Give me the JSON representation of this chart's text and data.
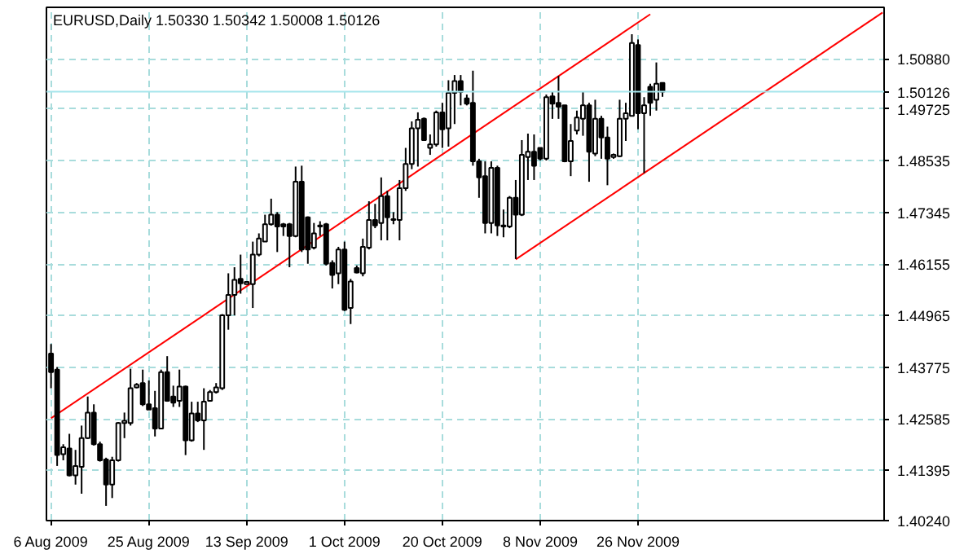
{
  "chart_data": {
    "type": "candlestick",
    "title": "EURUSD,Daily  1.50330 1.50342 1.50008 1.50126",
    "categories": [
      "6 Aug 2009",
      null,
      null,
      null,
      null,
      null,
      null,
      null,
      null,
      null,
      null,
      null,
      null,
      null,
      null,
      null,
      "25 Aug 2009",
      null,
      null,
      null,
      null,
      null,
      null,
      null,
      null,
      null,
      null,
      null,
      null,
      null,
      null,
      null,
      "13 Sep 2009",
      null,
      null,
      null,
      null,
      null,
      null,
      null,
      null,
      null,
      null,
      null,
      null,
      null,
      null,
      null,
      "1 Oct 2009",
      null,
      null,
      null,
      null,
      null,
      null,
      null,
      null,
      null,
      null,
      null,
      null,
      null,
      null,
      null,
      "20 Oct 2009",
      null,
      null,
      null,
      null,
      null,
      null,
      null,
      null,
      null,
      null,
      null,
      null,
      null,
      null,
      null,
      "8 Nov 2009",
      null,
      null,
      null,
      null,
      null,
      null,
      null,
      null,
      null,
      null,
      null,
      null,
      null,
      null,
      null,
      "26 Nov 2009",
      null,
      null,
      null,
      null,
      null,
      null,
      null,
      null,
      null,
      null,
      null,
      null,
      null,
      null,
      null,
      null,
      null,
      null,
      null,
      null,
      null,
      null,
      null,
      null,
      null,
      null,
      null,
      null,
      null,
      null,
      null,
      null,
      null,
      null,
      null,
      null,
      null,
      null,
      null,
      null
    ],
    "ohlc": [
      [
        1.4409,
        1.4431,
        1.4329,
        1.4366
      ],
      [
        1.4372,
        1.4378,
        1.415,
        1.4175
      ],
      [
        1.4177,
        1.42,
        1.4163,
        1.4193
      ],
      [
        1.419,
        1.4224,
        1.4126,
        1.4128
      ],
      [
        1.4128,
        1.4187,
        1.4107,
        1.415
      ],
      [
        1.4148,
        1.4243,
        1.4086,
        1.4214
      ],
      [
        1.4214,
        1.431,
        1.4212,
        1.4273
      ],
      [
        1.4273,
        1.4292,
        1.4197,
        1.42
      ],
      [
        1.42,
        1.4206,
        1.416,
        1.4163
      ],
      [
        1.4165,
        1.4169,
        1.4058,
        1.4107
      ],
      [
        1.4107,
        1.4171,
        1.4076,
        1.4163
      ],
      [
        1.4163,
        1.4251,
        1.416,
        1.4249
      ],
      [
        1.4249,
        1.4273,
        1.4214,
        1.4254
      ],
      [
        1.4249,
        1.4374,
        1.4243,
        1.4329
      ],
      [
        1.4331,
        1.4341,
        1.4329,
        1.4337
      ],
      [
        1.4341,
        1.4372,
        1.4288,
        1.4292
      ],
      [
        1.4292,
        1.4347,
        1.428,
        1.428
      ],
      [
        1.4283,
        1.4323,
        1.4218,
        1.4236
      ],
      [
        1.4236,
        1.4372,
        1.4236,
        1.4366
      ],
      [
        1.4366,
        1.4403,
        1.4298,
        1.43
      ],
      [
        1.431,
        1.4335,
        1.4286,
        1.4296
      ],
      [
        1.43,
        1.4372,
        1.4286,
        1.4333
      ],
      [
        1.4333,
        1.4335,
        1.4175,
        1.4209
      ],
      [
        1.4209,
        1.4298,
        1.4206,
        1.4271
      ],
      [
        1.4271,
        1.4298,
        1.4251,
        1.4255
      ],
      [
        1.4255,
        1.4329,
        1.4187,
        1.4298
      ],
      [
        1.43,
        1.4325,
        1.4298,
        1.432
      ],
      [
        1.432,
        1.4341,
        1.4317,
        1.4331
      ],
      [
        1.4329,
        1.45,
        1.4325,
        1.4497
      ],
      [
        1.4497,
        1.4594,
        1.4464,
        1.4544
      ],
      [
        1.4544,
        1.4608,
        1.4497,
        1.4579
      ],
      [
        1.4581,
        1.4637,
        1.4547,
        1.4571
      ],
      [
        1.4569,
        1.4575,
        1.4569,
        1.4574
      ],
      [
        1.4569,
        1.4667,
        1.4514,
        1.4637
      ],
      [
        1.4637,
        1.4686,
        1.4633,
        1.4674
      ],
      [
        1.4667,
        1.4729,
        1.4667,
        1.4707
      ],
      [
        1.4707,
        1.4766,
        1.4704,
        1.4729
      ],
      [
        1.4729,
        1.4735,
        1.4643,
        1.4702
      ],
      [
        1.4707,
        1.471,
        1.468,
        1.4702
      ],
      [
        1.4707,
        1.471,
        1.4608,
        1.468
      ],
      [
        1.468,
        1.484,
        1.4677,
        1.4805
      ],
      [
        1.4805,
        1.4842,
        1.4643,
        1.4649
      ],
      [
        1.4723,
        1.4725,
        1.4616,
        1.4649
      ],
      [
        1.4653,
        1.471,
        1.4649,
        1.4686
      ],
      [
        1.4704,
        1.4714,
        1.468,
        1.4702
      ],
      [
        1.4707,
        1.471,
        1.4612,
        1.4616
      ],
      [
        1.4618,
        1.4624,
        1.4559,
        1.459
      ],
      [
        1.4594,
        1.4655,
        1.4569,
        1.4649
      ],
      [
        1.4649,
        1.4667,
        1.4507,
        1.451
      ],
      [
        1.4514,
        1.4581,
        1.4477,
        1.4575
      ],
      [
        1.4606,
        1.4612,
        1.4594,
        1.4596
      ],
      [
        1.4594,
        1.4674,
        1.4587,
        1.4655
      ],
      [
        1.4653,
        1.476,
        1.4649,
        1.4717
      ],
      [
        1.4717,
        1.4754,
        1.4698,
        1.4704
      ],
      [
        1.471,
        1.4815,
        1.467,
        1.4772
      ],
      [
        1.4772,
        1.4784,
        1.467,
        1.4723
      ],
      [
        1.4719,
        1.4735,
        1.4707,
        1.4717
      ],
      [
        1.4717,
        1.4809,
        1.467,
        1.479
      ],
      [
        1.479,
        1.4883,
        1.4784,
        1.4846
      ],
      [
        1.4846,
        1.4944,
        1.4834,
        1.4928
      ],
      [
        1.4928,
        1.4965,
        1.484,
        1.4948
      ],
      [
        1.495,
        1.4953,
        1.4899,
        1.4901
      ],
      [
        1.4883,
        1.4914,
        1.4867,
        1.4891
      ],
      [
        1.4891,
        1.4969,
        1.4886,
        1.4965
      ],
      [
        1.4965,
        1.4987,
        1.4883,
        1.4926
      ],
      [
        1.4928,
        1.5039,
        1.4886,
        1.501
      ],
      [
        1.501,
        1.5051,
        1.4938,
        1.5037
      ],
      [
        1.5037,
        1.5051,
        1.4981,
        1.5012
      ],
      [
        1.4997,
        1.5006,
        1.4981,
        1.4985
      ],
      [
        1.4987,
        1.5061,
        1.4842,
        1.4852
      ],
      [
        1.4852,
        1.4858,
        1.4768,
        1.4815
      ],
      [
        1.4818,
        1.4852,
        1.4686,
        1.471
      ],
      [
        1.471,
        1.4852,
        1.4686,
        1.4837
      ],
      [
        1.4837,
        1.4842,
        1.468,
        1.4704
      ],
      [
        1.4704,
        1.4741,
        1.4677,
        1.4702
      ],
      [
        1.4702,
        1.4772,
        1.4698,
        1.4768
      ],
      [
        1.4768,
        1.4809,
        1.4627,
        1.4729
      ],
      [
        1.4729,
        1.4901,
        1.4726,
        1.4867
      ],
      [
        1.4862,
        1.4916,
        1.4809,
        1.4874
      ],
      [
        1.4874,
        1.4914,
        1.4809,
        1.4842
      ],
      [
        1.4883,
        1.4883,
        1.4854,
        1.4858
      ],
      [
        1.4858,
        1.5006,
        1.4854,
        1.5
      ],
      [
        1.5002,
        1.5012,
        1.495,
        1.4985
      ],
      [
        1.4987,
        1.5049,
        1.495,
        1.4978
      ],
      [
        1.4981,
        1.4981,
        1.485,
        1.4852
      ],
      [
        1.4852,
        1.4938,
        1.4818,
        1.4899
      ],
      [
        1.4923,
        1.4969,
        1.4914,
        1.4953
      ],
      [
        1.495,
        1.5012,
        1.4911,
        1.4981
      ],
      [
        1.4981,
        1.4987,
        1.4805,
        1.4874
      ],
      [
        1.487,
        1.4994,
        1.4864,
        1.495
      ],
      [
        1.495,
        1.4957,
        1.4858,
        1.4907
      ],
      [
        1.4907,
        1.4932,
        1.4797,
        1.4858
      ],
      [
        1.4862,
        1.487,
        1.4858,
        1.4867
      ],
      [
        1.4864,
        1.4994,
        1.4862,
        1.495
      ],
      [
        1.495,
        1.4987,
        1.4899,
        1.4963
      ],
      [
        1.4957,
        1.5145,
        1.4957,
        1.5125
      ],
      [
        1.512,
        1.5133,
        1.4926,
        1.4963
      ],
      [
        1.4963,
        1.5,
        1.4825,
        1.4981
      ],
      [
        1.5024,
        1.5031,
        1.4957,
        1.4987
      ],
      [
        1.4994,
        1.508,
        1.4969,
        1.5031
      ],
      [
        1.5033,
        1.50342,
        1.50008,
        1.50126
      ],
      null,
      null,
      null,
      null,
      null,
      null,
      null,
      null,
      null,
      null,
      null,
      null,
      null,
      null,
      null,
      null,
      null,
      null,
      null,
      null,
      null,
      null,
      null,
      null,
      null,
      null,
      null,
      null,
      null,
      null,
      null,
      null,
      null,
      null,
      null,
      null
    ],
    "series": [
      {
        "type": "line",
        "color": "#ff0000",
        "values": [
          1.426,
          null,
          null,
          null,
          null,
          null,
          null,
          null,
          null,
          null,
          null,
          null,
          null,
          null,
          null,
          null,
          null,
          null,
          null,
          null,
          null,
          null,
          null,
          null,
          null,
          null,
          null,
          null,
          null,
          null,
          null,
          null,
          null,
          null,
          null,
          null,
          null,
          null,
          null,
          null,
          null,
          null,
          null,
          null,
          null,
          null,
          null,
          null,
          null,
          null,
          null,
          null,
          null,
          null,
          null,
          null,
          null,
          null,
          null,
          null,
          null,
          null,
          null,
          null,
          null,
          null,
          null,
          null,
          null,
          null,
          null,
          null,
          null,
          null,
          null,
          null,
          null,
          null,
          null,
          null,
          null,
          null,
          null,
          null,
          null,
          null,
          null,
          null,
          null,
          null,
          null,
          null,
          null,
          null,
          null,
          null,
          null,
          null,
          1.5191,
          null,
          null,
          null,
          null,
          null,
          null,
          null,
          null,
          null,
          null,
          null,
          null,
          null,
          null,
          null,
          null,
          null,
          null,
          null,
          null,
          null,
          null,
          null,
          null,
          null,
          null,
          null,
          null,
          null,
          null,
          null,
          null,
          null,
          null,
          null,
          null,
          null,
          null
        ]
      },
      {
        "type": "line",
        "color": "#ff0000",
        "values": [
          null,
          null,
          null,
          null,
          null,
          null,
          null,
          null,
          null,
          null,
          null,
          null,
          null,
          null,
          null,
          null,
          null,
          null,
          null,
          null,
          null,
          null,
          null,
          null,
          null,
          null,
          null,
          null,
          null,
          null,
          null,
          null,
          null,
          null,
          null,
          null,
          null,
          null,
          null,
          null,
          null,
          null,
          null,
          null,
          null,
          null,
          null,
          null,
          null,
          null,
          null,
          null,
          null,
          null,
          null,
          null,
          null,
          null,
          null,
          null,
          null,
          null,
          null,
          null,
          null,
          null,
          null,
          null,
          null,
          null,
          null,
          null,
          null,
          null,
          null,
          null,
          1.4626,
          null,
          null,
          null,
          null,
          null,
          null,
          null,
          null,
          null,
          null,
          null,
          null,
          null,
          null,
          null,
          null,
          null,
          null,
          null,
          null,
          null,
          null,
          null,
          null,
          null,
          null,
          null,
          null,
          null,
          null,
          null,
          null,
          null,
          null,
          null,
          null,
          null,
          null,
          null,
          null,
          null,
          null,
          null,
          null,
          null,
          null,
          null,
          null,
          null,
          null,
          null,
          null,
          null,
          null,
          null,
          null,
          null,
          null,
          null,
          1.5195
        ]
      }
    ],
    "ylim": [
      1.4024,
      1.5207
    ],
    "yticks": [
      {
        "value": 1.4024,
        "label": "1.40240"
      },
      {
        "value": 1.41395,
        "label": "1.41395"
      },
      {
        "value": 1.42585,
        "label": "1.42585"
      },
      {
        "value": 1.43775,
        "label": "1.43775"
      },
      {
        "value": 1.44965,
        "label": "1.44965"
      },
      {
        "value": 1.46155,
        "label": "1.46155"
      },
      {
        "value": 1.47345,
        "label": "1.47345"
      },
      {
        "value": 1.48535,
        "label": "1.48535"
      },
      {
        "value": 1.49725,
        "label": "1.49725"
      },
      {
        "value": 1.5088,
        "label": "1.50880"
      }
    ],
    "ref_lines": [
      {
        "axis": "y",
        "value": 1.50126,
        "label": "1.50126",
        "color": "#a6e6ec"
      }
    ],
    "grid": true
  }
}
